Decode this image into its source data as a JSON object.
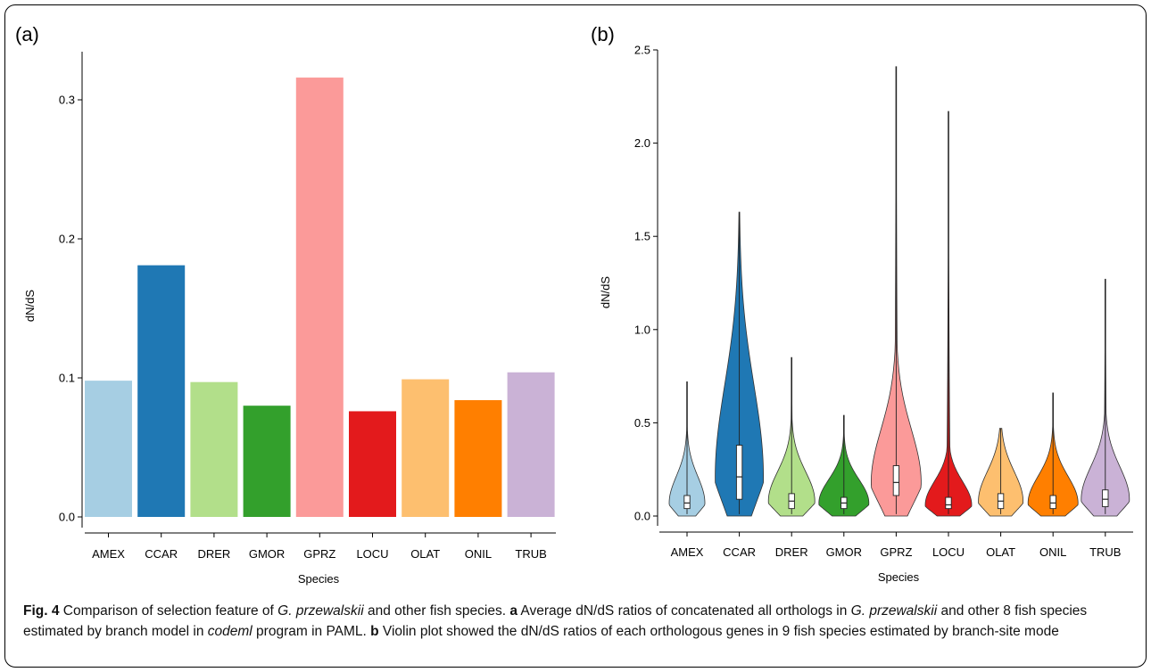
{
  "figure": {
    "caption": {
      "fig_label": "Fig. 4",
      "text1": " Comparison of selection feature of ",
      "species_italic": "G. przewalskii",
      "text2": " and other fish species. ",
      "a_label": "a",
      "text3": " Average dN/dS ratios of concatenated all orthologs in ",
      "species_italic2": "G. przewalskii",
      "text4": " and other 8 fish species estimated by branch model in ",
      "program_italic": "codeml",
      "text5": " program in PAML. ",
      "b_label": "b",
      "text6": " Violin plot showed the dN/dS ratios of each orthologous genes in 9 fish species estimated by branch-site mode"
    }
  },
  "chart_data": [
    {
      "type": "bar",
      "panel_label": "(a)",
      "categories": [
        "AMEX",
        "CCAR",
        "DRER",
        "GMOR",
        "GPRZ",
        "LOCU",
        "OLAT",
        "ONIL",
        "TRUB"
      ],
      "values": [
        0.098,
        0.181,
        0.097,
        0.08,
        0.316,
        0.076,
        0.099,
        0.084,
        0.104
      ],
      "colors": [
        "#a6cee3",
        "#1f78b4",
        "#b2df8a",
        "#33a02c",
        "#fb9a99",
        "#e31a1c",
        "#fdbf6f",
        "#ff7f00",
        "#cab2d6"
      ],
      "xlabel": "Species",
      "ylabel": "dN/dS",
      "yticks": [
        "0.0",
        "0.1",
        "0.2",
        "0.3"
      ],
      "ylim": [
        0,
        0.33
      ],
      "grid": false
    },
    {
      "type": "violin",
      "panel_label": "(b)",
      "categories": [
        "AMEX",
        "CCAR",
        "DRER",
        "GMOR",
        "GPRZ",
        "LOCU",
        "OLAT",
        "ONIL",
        "TRUB"
      ],
      "colors": [
        "#a6cee3",
        "#1f78b4",
        "#b2df8a",
        "#33a02c",
        "#fb9a99",
        "#e31a1c",
        "#fdbf6f",
        "#ff7f00",
        "#cab2d6"
      ],
      "max": [
        0.72,
        1.63,
        0.85,
        0.54,
        2.41,
        2.17,
        0.47,
        0.66,
        1.27
      ],
      "median": [
        0.07,
        0.21,
        0.08,
        0.07,
        0.18,
        0.06,
        0.08,
        0.07,
        0.09
      ],
      "q1": [
        0.04,
        0.09,
        0.04,
        0.04,
        0.11,
        0.04,
        0.04,
        0.04,
        0.05
      ],
      "q3": [
        0.11,
        0.38,
        0.12,
        0.1,
        0.27,
        0.1,
        0.12,
        0.11,
        0.14
      ],
      "xlabel": "Species",
      "ylabel": "dN/dS",
      "yticks": [
        "0.0",
        "0.5",
        "1.0",
        "1.5",
        "2.0",
        "2.5"
      ],
      "ylim": [
        0,
        2.5
      ],
      "grid": false
    }
  ]
}
